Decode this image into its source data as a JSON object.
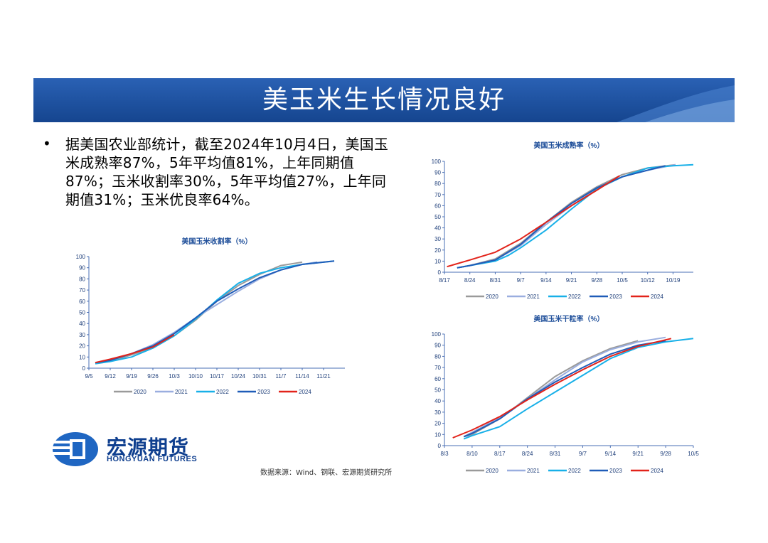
{
  "slide": {
    "title": "美玉米生长情况良好",
    "bullet_text": "据美国农业部统计，截至2024年10月4日，美国玉米成熟率87%，5年平均值81%，上年同期值87%；玉米收割率30%，5年平均值27%，上年同期值31%；玉米优良率64%。",
    "source": "数据来源：Wind、钢联、宏源期货研究所",
    "logo_cn": "宏源期货",
    "logo_en": "HONGYUAN FUTURES"
  },
  "colors": {
    "banner": "#1a4fa0",
    "banner_light": "#3f74c4"
  },
  "series_colors": {
    "2020": "#9a9a9a",
    "2021": "#9aaedf",
    "2022": "#18b0e8",
    "2023": "#1f5cb8",
    "2024": "#e2231a"
  },
  "chart_data": [
    {
      "id": "harvest",
      "type": "line",
      "title": "美国玉米收割率（%）",
      "x_ticks": [
        "9/5",
        "9/12",
        "9/19",
        "9/26",
        "10/3",
        "10/10",
        "10/17",
        "10/24",
        "10/31",
        "11/7",
        "11/14",
        "11/21"
      ],
      "xlim": [
        0,
        12
      ],
      "ylim": [
        0,
        100
      ],
      "y_ticks": [
        0,
        10,
        20,
        30,
        40,
        50,
        60,
        70,
        80,
        90,
        100
      ],
      "series": [
        {
          "name": "2020",
          "points": [
            [
              0.3,
              5
            ],
            [
              1,
              6
            ],
            [
              2,
              12
            ],
            [
              3,
              18
            ],
            [
              4,
              29
            ],
            [
              5,
              43
            ],
            [
              6,
              60
            ],
            [
              7,
              74
            ],
            [
              8,
              84
            ],
            [
              9,
              92
            ],
            [
              10,
              95
            ]
          ]
        },
        {
          "name": "2021",
          "points": [
            [
              0.3,
              5
            ],
            [
              1,
              7
            ],
            [
              2,
              13
            ],
            [
              3,
              21
            ],
            [
              4,
              32
            ],
            [
              5,
              45
            ],
            [
              6,
              57
            ],
            [
              7,
              69
            ],
            [
              8,
              80
            ],
            [
              9,
              88
            ],
            [
              10,
              93
            ],
            [
              10.7,
              95
            ]
          ]
        },
        {
          "name": "2022",
          "points": [
            [
              0.3,
              4
            ],
            [
              1,
              6
            ],
            [
              2,
              10
            ],
            [
              3,
              18
            ],
            [
              4,
              29
            ],
            [
              5,
              44
            ],
            [
              6,
              61
            ],
            [
              7,
              76
            ],
            [
              8,
              85
            ],
            [
              9,
              90
            ],
            [
              10,
              93
            ],
            [
              11.5,
              96
            ]
          ]
        },
        {
          "name": "2023",
          "points": [
            [
              0.3,
              5
            ],
            [
              1,
              7
            ],
            [
              2,
              13
            ],
            [
              3,
              20
            ],
            [
              4,
              31
            ],
            [
              5,
              45
            ],
            [
              6,
              60
            ],
            [
              7,
              71
            ],
            [
              8,
              81
            ],
            [
              9,
              88
            ],
            [
              10,
              93
            ],
            [
              11.5,
              96
            ]
          ]
        },
        {
          "name": "2024",
          "points": [
            [
              0.3,
              5
            ],
            [
              1,
              8
            ],
            [
              2,
              13
            ],
            [
              3,
              19
            ],
            [
              4,
              30
            ]
          ]
        }
      ]
    },
    {
      "id": "maturity",
      "type": "line",
      "title": "美国玉米成熟率（%）",
      "x_ticks": [
        "8/17",
        "8/24",
        "8/31",
        "9/7",
        "9/14",
        "9/21",
        "9/28",
        "10/5",
        "10/12",
        "10/19"
      ],
      "xlim": [
        0,
        9.8
      ],
      "ylim": [
        0,
        100
      ],
      "y_ticks": [
        0,
        10,
        20,
        30,
        40,
        50,
        60,
        70,
        80,
        90,
        100
      ],
      "series": [
        {
          "name": "2020",
          "points": [
            [
              0.5,
              4
            ],
            [
              1,
              6
            ],
            [
              2,
              12
            ],
            [
              3,
              26
            ],
            [
              4,
              45
            ],
            [
              5,
              63
            ],
            [
              6,
              77
            ],
            [
              7,
              88
            ],
            [
              8,
              94
            ],
            [
              9.1,
              97
            ]
          ]
        },
        {
          "name": "2021",
          "points": [
            [
              0.5,
              4
            ],
            [
              1,
              6
            ],
            [
              2,
              11
            ],
            [
              3,
              24
            ],
            [
              4,
              43
            ],
            [
              5,
              60
            ],
            [
              6,
              75
            ],
            [
              7,
              86
            ],
            [
              8,
              92
            ],
            [
              9.1,
              97
            ]
          ]
        },
        {
          "name": "2022",
          "points": [
            [
              0.5,
              4
            ],
            [
              1,
              6
            ],
            [
              2,
              10
            ],
            [
              2.5,
              15
            ],
            [
              3,
              22
            ],
            [
              4,
              38
            ],
            [
              5,
              57
            ],
            [
              6,
              75
            ],
            [
              7,
              86
            ],
            [
              8,
              94
            ],
            [
              9,
              96
            ],
            [
              9.8,
              97
            ]
          ]
        },
        {
          "name": "2023",
          "points": [
            [
              0.5,
              4
            ],
            [
              1,
              6
            ],
            [
              2,
              11
            ],
            [
              3,
              25
            ],
            [
              4,
              45
            ],
            [
              5,
              62
            ],
            [
              6,
              76
            ],
            [
              7,
              86
            ],
            [
              8,
              92
            ],
            [
              8.7,
              96
            ]
          ]
        },
        {
          "name": "2024",
          "points": [
            [
              0.1,
              5
            ],
            [
              1,
              11
            ],
            [
              2,
              18
            ],
            [
              3,
              30
            ],
            [
              4,
              45
            ],
            [
              5,
              60
            ],
            [
              6,
              74
            ],
            [
              6.9,
              87
            ]
          ]
        }
      ]
    },
    {
      "id": "dent",
      "type": "line",
      "title": "美国玉米干粒率（%）",
      "x_ticks": [
        "8/3",
        "8/10",
        "8/17",
        "8/24",
        "8/31",
        "9/7",
        "9/14",
        "9/21",
        "9/28",
        "10/5"
      ],
      "xlim": [
        0,
        9
      ],
      "ylim": [
        0,
        100
      ],
      "y_ticks": [
        0,
        10,
        20,
        30,
        40,
        50,
        60,
        70,
        80,
        90,
        100
      ],
      "series": [
        {
          "name": "2020",
          "points": [
            [
              0.7,
              8
            ],
            [
              1,
              10
            ],
            [
              2,
              24
            ],
            [
              3,
              43
            ],
            [
              4,
              62
            ],
            [
              5,
              76
            ],
            [
              6,
              87
            ],
            [
              7,
              94
            ]
          ]
        },
        {
          "name": "2021",
          "points": [
            [
              0.7,
              8
            ],
            [
              1,
              12
            ],
            [
              2,
              25
            ],
            [
              3,
              42
            ],
            [
              4,
              59
            ],
            [
              5,
              75
            ],
            [
              6,
              86
            ],
            [
              7,
              93
            ],
            [
              8,
              97
            ]
          ]
        },
        {
          "name": "2022",
          "points": [
            [
              0.7,
              6
            ],
            [
              1,
              9
            ],
            [
              2,
              17
            ],
            [
              3,
              33
            ],
            [
              4,
              48
            ],
            [
              5,
              63
            ],
            [
              6,
              78
            ],
            [
              7,
              88
            ],
            [
              8,
              93
            ],
            [
              9,
              96
            ]
          ]
        },
        {
          "name": "2023",
          "points": [
            [
              0.7,
              8
            ],
            [
              1,
              11
            ],
            [
              2,
              24
            ],
            [
              3,
              42
            ],
            [
              4,
              57
            ],
            [
              5,
              70
            ],
            [
              6,
              82
            ],
            [
              7,
              90
            ],
            [
              8,
              94
            ]
          ]
        },
        {
          "name": "2024",
          "points": [
            [
              0.3,
              7
            ],
            [
              1,
              14
            ],
            [
              2,
              26
            ],
            [
              3,
              41
            ],
            [
              4,
              55
            ],
            [
              5,
              68
            ],
            [
              6,
              80
            ],
            [
              7,
              89
            ],
            [
              8.2,
              96
            ]
          ]
        }
      ]
    }
  ]
}
